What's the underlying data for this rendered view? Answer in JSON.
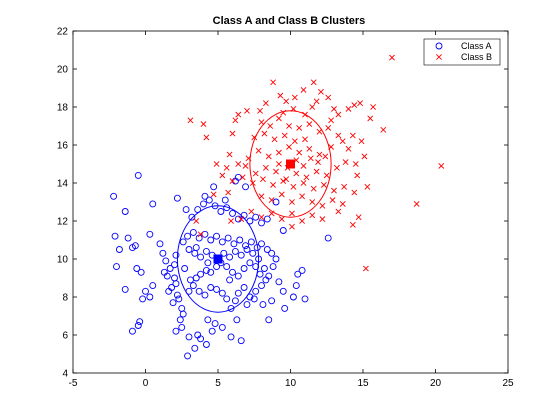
{
  "chart_data": {
    "type": "scatter",
    "title": "Class A and Class B Clusters",
    "xlabel": "",
    "ylabel": "",
    "xlim": [
      -5,
      25
    ],
    "ylim": [
      4,
      22
    ],
    "xticks": [
      -5,
      0,
      5,
      10,
      15,
      20,
      25
    ],
    "yticks": [
      4,
      6,
      8,
      10,
      12,
      14,
      16,
      18,
      20,
      22
    ],
    "grid": false,
    "legend": {
      "position": "top-right",
      "entries": [
        {
          "label": "Class A",
          "marker": "circle",
          "color": "#0000ff"
        },
        {
          "label": "Class B",
          "marker": "x",
          "color": "#ff0000"
        }
      ]
    },
    "series": [
      {
        "name": "Class A",
        "marker": "circle",
        "color": "#0000ff",
        "points": [
          [
            -2.2,
            13.3
          ],
          [
            -1.4,
            12.5
          ],
          [
            -2.1,
            11.2
          ],
          [
            -1.8,
            10.5
          ],
          [
            -2.0,
            9.6
          ],
          [
            -1.2,
            11.1
          ],
          [
            -0.9,
            10.6
          ],
          [
            -0.7,
            10.7
          ],
          [
            -1.4,
            8.4
          ],
          [
            -0.6,
            9.5
          ],
          [
            0.3,
            11.3
          ],
          [
            -0.5,
            14.4
          ],
          [
            0.5,
            12.9
          ],
          [
            -0.3,
            9.3
          ],
          [
            0.0,
            8.3
          ],
          [
            -0.2,
            7.9
          ],
          [
            0.5,
            8.6
          ],
          [
            0.3,
            8.0
          ],
          [
            -0.5,
            6.5
          ],
          [
            -0.4,
            6.7
          ],
          [
            -0.9,
            6.2
          ],
          [
            1.0,
            10.8
          ],
          [
            1.2,
            10.3
          ],
          [
            1.4,
            9.9
          ],
          [
            1.7,
            9.5
          ],
          [
            1.3,
            9.3
          ],
          [
            1.5,
            9.1
          ],
          [
            2.0,
            9.7
          ],
          [
            2.1,
            10.2
          ],
          [
            2.0,
            9.0
          ],
          [
            2.1,
            8.7
          ],
          [
            1.8,
            8.5
          ],
          [
            1.6,
            8.3
          ],
          [
            2.2,
            8.1
          ],
          [
            1.9,
            7.7
          ],
          [
            2.3,
            7.9
          ],
          [
            2.5,
            7.4
          ],
          [
            2.6,
            7.1
          ],
          [
            2.4,
            6.8
          ],
          [
            2.1,
            6.2
          ],
          [
            2.5,
            6.4
          ],
          [
            3.0,
            5.9
          ],
          [
            2.9,
            4.9
          ],
          [
            3.4,
            5.3
          ],
          [
            3.6,
            6.0
          ],
          [
            3.8,
            5.8
          ],
          [
            4.2,
            5.5
          ],
          [
            4.6,
            6.2
          ],
          [
            4.3,
            6.8
          ],
          [
            4.8,
            6.6
          ],
          [
            5.3,
            6.4
          ],
          [
            5.9,
            5.9
          ],
          [
            6.3,
            6.8
          ],
          [
            6.6,
            5.7
          ],
          [
            5.9,
            7.4
          ],
          [
            6.2,
            7.8
          ],
          [
            5.6,
            7.9
          ],
          [
            5.3,
            8.2
          ],
          [
            4.9,
            8.4
          ],
          [
            4.5,
            8.5
          ],
          [
            4.1,
            8.1
          ],
          [
            3.7,
            8.3
          ],
          [
            3.3,
            8.6
          ],
          [
            3.0,
            8.3
          ],
          [
            3.1,
            8.9
          ],
          [
            3.5,
            9.0
          ],
          [
            3.8,
            9.2
          ],
          [
            4.2,
            9.4
          ],
          [
            4.5,
            9.3
          ],
          [
            4.9,
            9.6
          ],
          [
            5.2,
            9.8
          ],
          [
            5.6,
            9.6
          ],
          [
            6.0,
            9.3
          ],
          [
            6.4,
            9.1
          ],
          [
            6.8,
            9.5
          ],
          [
            7.2,
            9.8
          ],
          [
            7.6,
            9.6
          ],
          [
            7.9,
            9.2
          ],
          [
            8.2,
            9.5
          ],
          [
            8.5,
            9.1
          ],
          [
            8.8,
            9.6
          ],
          [
            9.0,
            10.0
          ],
          [
            8.7,
            10.3
          ],
          [
            8.4,
            10.5
          ],
          [
            8.0,
            10.8
          ],
          [
            7.7,
            10.6
          ],
          [
            7.3,
            10.9
          ],
          [
            6.9,
            10.7
          ],
          [
            6.5,
            11.0
          ],
          [
            6.1,
            10.8
          ],
          [
            5.7,
            11.1
          ],
          [
            5.3,
            10.9
          ],
          [
            4.9,
            11.2
          ],
          [
            4.5,
            11.0
          ],
          [
            4.1,
            11.3
          ],
          [
            3.7,
            11.1
          ],
          [
            3.3,
            11.4
          ],
          [
            2.9,
            11.2
          ],
          [
            2.6,
            10.9
          ],
          [
            3.0,
            10.5
          ],
          [
            3.4,
            10.3
          ],
          [
            3.8,
            10.1
          ],
          [
            4.2,
            10.4
          ],
          [
            4.6,
            10.2
          ],
          [
            5.0,
            10.0
          ],
          [
            5.4,
            10.3
          ],
          [
            5.8,
            10.1
          ],
          [
            6.2,
            10.4
          ],
          [
            6.6,
            10.2
          ],
          [
            7.0,
            10.5
          ],
          [
            7.4,
            10.3
          ],
          [
            7.8,
            10.0
          ],
          [
            3.2,
            12.2
          ],
          [
            3.6,
            12.6
          ],
          [
            4.0,
            12.9
          ],
          [
            4.4,
            13.1
          ],
          [
            4.8,
            12.8
          ],
          [
            5.2,
            12.5
          ],
          [
            5.6,
            12.7
          ],
          [
            6.0,
            12.4
          ],
          [
            6.4,
            12.1
          ],
          [
            6.8,
            12.3
          ],
          [
            7.2,
            12.0
          ],
          [
            7.6,
            12.2
          ],
          [
            8.0,
            11.9
          ],
          [
            8.4,
            12.1
          ],
          [
            6.2,
            14.1
          ],
          [
            6.4,
            14.3
          ],
          [
            6.9,
            13.8
          ],
          [
            5.5,
            13.1
          ],
          [
            4.7,
            13.8
          ],
          [
            4.1,
            13.3
          ],
          [
            2.2,
            13.2
          ],
          [
            2.8,
            12.6
          ],
          [
            9.0,
            13.0
          ],
          [
            9.5,
            11.5
          ],
          [
            9.2,
            8.8
          ],
          [
            9.5,
            8.3
          ],
          [
            10.2,
            8.0
          ],
          [
            9.6,
            7.4
          ],
          [
            10.4,
            8.6
          ],
          [
            11.0,
            7.9
          ],
          [
            10.5,
            9.2
          ],
          [
            10.8,
            9.4
          ],
          [
            7.6,
            8.3
          ],
          [
            7.2,
            8.0
          ],
          [
            6.8,
            8.5
          ],
          [
            7.0,
            7.6
          ],
          [
            7.5,
            7.9
          ],
          [
            8.1,
            7.6
          ],
          [
            8.7,
            7.8
          ],
          [
            8.5,
            6.8
          ],
          [
            8.0,
            8.6
          ],
          [
            8.3,
            8.9
          ],
          [
            12.6,
            11.1
          ],
          [
            3.5,
            10.6
          ],
          [
            4.3,
            9.8
          ],
          [
            5.8,
            8.9
          ],
          [
            6.4,
            8.2
          ],
          [
            2.7,
            9.5
          ]
        ]
      },
      {
        "name": "Class B",
        "marker": "x",
        "color": "#ff0000",
        "points": [
          [
            17.0,
            20.6
          ],
          [
            11.6,
            19.3
          ],
          [
            8.8,
            19.3
          ],
          [
            10.9,
            18.9
          ],
          [
            12.1,
            18.8
          ],
          [
            11.5,
            18.0
          ],
          [
            12.6,
            18.5
          ],
          [
            13.0,
            17.9
          ],
          [
            11.0,
            17.6
          ],
          [
            10.2,
            17.9
          ],
          [
            9.3,
            18.6
          ],
          [
            9.7,
            18.3
          ],
          [
            8.3,
            18.2
          ],
          [
            7.9,
            17.8
          ],
          [
            7.0,
            17.8
          ],
          [
            6.4,
            17.6
          ],
          [
            6.2,
            17.3
          ],
          [
            6.0,
            16.6
          ],
          [
            5.8,
            15.5
          ],
          [
            3.1,
            17.3
          ],
          [
            4.0,
            17.1
          ],
          [
            4.2,
            16.4
          ],
          [
            8.0,
            17.2
          ],
          [
            8.6,
            17.0
          ],
          [
            9.2,
            17.4
          ],
          [
            9.9,
            17.0
          ],
          [
            10.6,
            16.9
          ],
          [
            11.3,
            17.1
          ],
          [
            12.0,
            16.7
          ],
          [
            12.6,
            16.9
          ],
          [
            13.3,
            17.6
          ],
          [
            14.0,
            17.9
          ],
          [
            14.4,
            18.1
          ],
          [
            14.8,
            18.2
          ],
          [
            15.7,
            18.0
          ],
          [
            15.5,
            17.4
          ],
          [
            16.4,
            16.8
          ],
          [
            14.3,
            16.5
          ],
          [
            13.6,
            16.2
          ],
          [
            12.8,
            15.9
          ],
          [
            12.0,
            15.5
          ],
          [
            11.3,
            15.8
          ],
          [
            10.6,
            15.6
          ],
          [
            9.9,
            15.9
          ],
          [
            9.2,
            15.6
          ],
          [
            8.5,
            15.4
          ],
          [
            7.8,
            15.7
          ],
          [
            7.1,
            15.3
          ],
          [
            6.4,
            15.0
          ],
          [
            5.6,
            14.8
          ],
          [
            4.9,
            15.0
          ],
          [
            5.3,
            14.4
          ],
          [
            6.0,
            14.1
          ],
          [
            6.7,
            14.3
          ],
          [
            7.4,
            14.0
          ],
          [
            8.1,
            14.2
          ],
          [
            8.8,
            13.9
          ],
          [
            9.5,
            14.1
          ],
          [
            10.2,
            13.8
          ],
          [
            10.9,
            14.0
          ],
          [
            11.6,
            13.7
          ],
          [
            12.3,
            13.9
          ],
          [
            13.0,
            13.6
          ],
          [
            13.7,
            13.8
          ],
          [
            14.4,
            13.5
          ],
          [
            13.8,
            15.1
          ],
          [
            14.5,
            15.0
          ],
          [
            15.1,
            15.4
          ],
          [
            14.6,
            14.4
          ],
          [
            13.2,
            14.8
          ],
          [
            12.5,
            14.4
          ],
          [
            11.8,
            14.6
          ],
          [
            11.1,
            14.3
          ],
          [
            10.4,
            14.5
          ],
          [
            9.7,
            14.2
          ],
          [
            9.0,
            14.6
          ],
          [
            8.3,
            14.8
          ],
          [
            7.6,
            14.5
          ],
          [
            6.9,
            14.9
          ],
          [
            8.0,
            13.3
          ],
          [
            8.7,
            13.1
          ],
          [
            9.4,
            13.4
          ],
          [
            10.1,
            13.0
          ],
          [
            10.8,
            13.3
          ],
          [
            11.5,
            13.0
          ],
          [
            12.2,
            12.8
          ],
          [
            12.9,
            13.1
          ],
          [
            13.6,
            12.9
          ],
          [
            13.3,
            12.5
          ],
          [
            12.2,
            12.1
          ],
          [
            11.5,
            12.3
          ],
          [
            10.8,
            12.0
          ],
          [
            10.1,
            12.4
          ],
          [
            9.4,
            12.1
          ],
          [
            8.7,
            12.4
          ],
          [
            8.0,
            12.2
          ],
          [
            7.3,
            12.5
          ],
          [
            6.6,
            12.1
          ],
          [
            5.9,
            12.0
          ],
          [
            4.7,
            13.4
          ],
          [
            3.5,
            12.0
          ],
          [
            3.8,
            11.3
          ],
          [
            5.7,
            13.5
          ],
          [
            10.1,
            11.7
          ],
          [
            14.3,
            11.8
          ],
          [
            14.7,
            12.2
          ],
          [
            15.3,
            13.8
          ],
          [
            18.7,
            12.9
          ],
          [
            20.4,
            14.9
          ],
          [
            15.2,
            9.5
          ],
          [
            11.0,
            16.3
          ],
          [
            10.3,
            16.2
          ],
          [
            9.6,
            16.5
          ],
          [
            8.9,
            16.3
          ],
          [
            8.2,
            16.6
          ],
          [
            7.5,
            16.4
          ],
          [
            9.2,
            15.0
          ],
          [
            9.8,
            14.8
          ],
          [
            10.4,
            15.2
          ],
          [
            10.9,
            14.9
          ],
          [
            11.4,
            15.3
          ],
          [
            11.9,
            15.1
          ],
          [
            12.4,
            15.4
          ],
          [
            13.3,
            16.5
          ],
          [
            14.0,
            15.8
          ],
          [
            14.9,
            16.2
          ],
          [
            12.8,
            17.3
          ],
          [
            10.3,
            18.5
          ],
          [
            9.5,
            17.7
          ],
          [
            11.8,
            18.3
          ]
        ]
      },
      {
        "name": "",
        "marker": "square",
        "color": "#0000ff",
        "points": [
          [
            5.0,
            10.0
          ]
        ]
      },
      {
        "name": "",
        "marker": "square",
        "color": "#ff0000",
        "points": [
          [
            10.0,
            15.0
          ]
        ]
      }
    ],
    "circles": [
      {
        "center": [
          5.0,
          10.0
        ],
        "radius": 2.8,
        "color": "#0000ff"
      },
      {
        "center": [
          10.0,
          15.0
        ],
        "radius": 2.8,
        "color": "#ff0000"
      }
    ]
  }
}
